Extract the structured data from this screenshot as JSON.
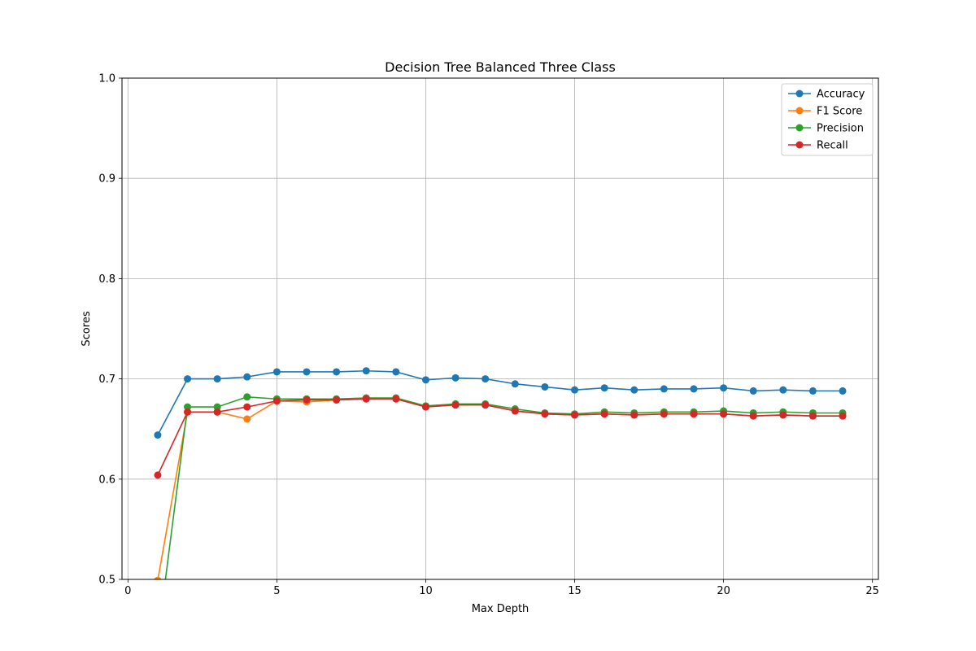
{
  "chart_data": {
    "type": "line",
    "title": "Decision Tree Balanced Three Class",
    "xlabel": "Max Depth",
    "ylabel": "Scores",
    "xlim": [
      -0.2,
      25.2
    ],
    "ylim": [
      0.5,
      1.0
    ],
    "x_ticks": [
      0,
      5,
      10,
      15,
      20,
      25
    ],
    "y_ticks": [
      0.5,
      0.6,
      0.7,
      0.8,
      0.9,
      1.0
    ],
    "x_tick_labels": [
      "0",
      "5",
      "10",
      "15",
      "20",
      "25"
    ],
    "y_tick_labels": [
      "0.5",
      "0.6",
      "0.7",
      "0.8",
      "0.9",
      "1.0"
    ],
    "grid": true,
    "legend_position": "top-right",
    "x": [
      1,
      2,
      3,
      4,
      5,
      6,
      7,
      8,
      9,
      10,
      11,
      12,
      13,
      14,
      15,
      16,
      17,
      18,
      19,
      20,
      21,
      22,
      23,
      24
    ],
    "series": [
      {
        "name": "Accuracy",
        "color": "#1f77b4",
        "values": [
          0.644,
          0.7,
          0.7,
          0.702,
          0.707,
          0.707,
          0.707,
          0.708,
          0.707,
          0.699,
          0.701,
          0.7,
          0.695,
          0.692,
          0.689,
          0.691,
          0.689,
          0.69,
          0.69,
          0.691,
          0.688,
          0.689,
          0.688,
          0.688
        ]
      },
      {
        "name": "F1 Score",
        "color": "#ff7f0e",
        "values": [
          0.499,
          0.667,
          0.667,
          0.66,
          0.678,
          0.677,
          0.679,
          0.68,
          0.68,
          0.672,
          0.674,
          0.674,
          0.668,
          0.665,
          0.664,
          0.665,
          0.664,
          0.665,
          0.665,
          0.665,
          0.663,
          0.664,
          0.663,
          0.663
        ]
      },
      {
        "name": "Precision",
        "color": "#2ca02c",
        "values": [
          0.44,
          0.672,
          0.672,
          0.682,
          0.68,
          0.68,
          0.68,
          0.681,
          0.681,
          0.673,
          0.675,
          0.675,
          0.67,
          0.666,
          0.665,
          0.667,
          0.666,
          0.667,
          0.667,
          0.668,
          0.666,
          0.667,
          0.666,
          0.666
        ]
      },
      {
        "name": "Recall",
        "color": "#d62728",
        "values": [
          0.604,
          0.667,
          0.667,
          0.672,
          0.678,
          0.679,
          0.679,
          0.68,
          0.68,
          0.672,
          0.674,
          0.674,
          0.668,
          0.665,
          0.664,
          0.665,
          0.664,
          0.665,
          0.665,
          0.665,
          0.663,
          0.664,
          0.663,
          0.663
        ]
      }
    ]
  }
}
